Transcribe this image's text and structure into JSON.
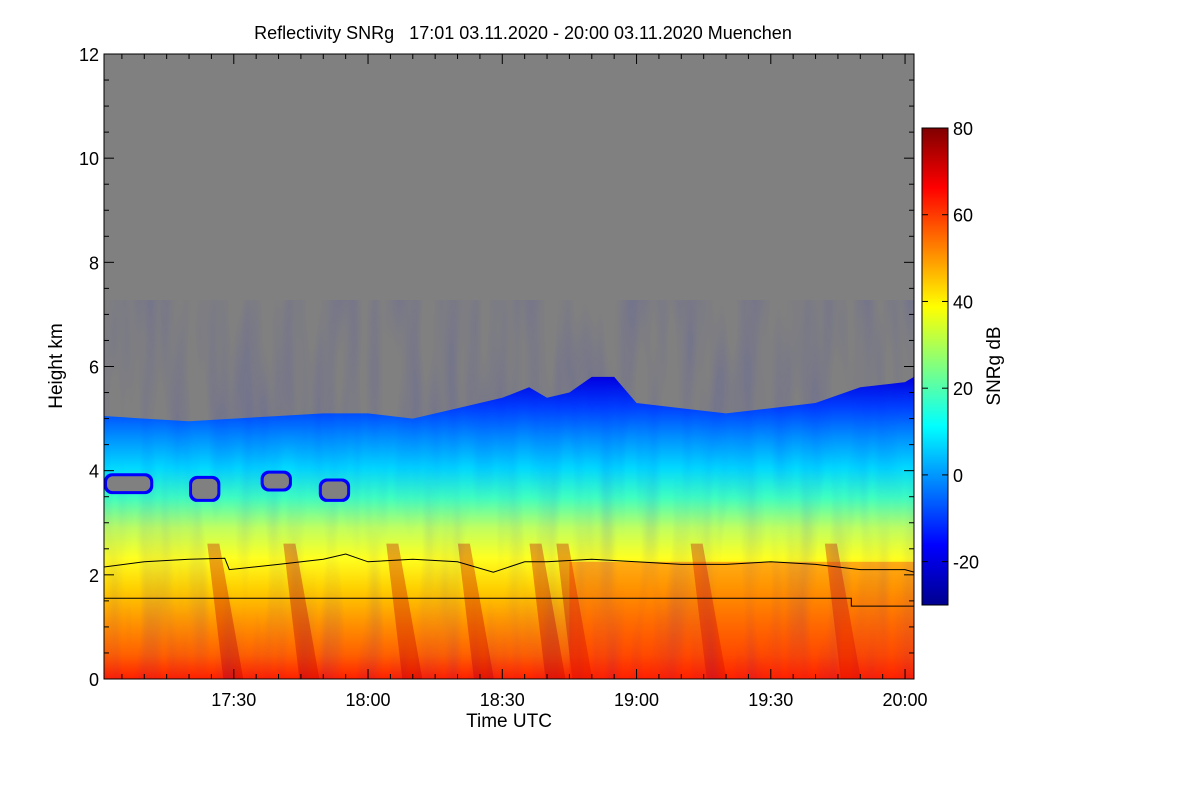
{
  "chart_data": {
    "type": "heatmap",
    "title": "Reflectivity SNRg   17:01 03.11.2020 - 20:00 03.11.2020 Muenchen",
    "xlabel": "Time UTC",
    "ylabel": "Height km",
    "x_range": [
      "17:01",
      "20:02"
    ],
    "x_ticks": [
      "17:30",
      "18:00",
      "18:30",
      "19:00",
      "19:30",
      "20:00"
    ],
    "ylim": [
      0,
      12
    ],
    "y_ticks": [
      "0",
      "2",
      "4",
      "6",
      "8",
      "10",
      "12"
    ],
    "colorbar": {
      "label": "SNRg dB",
      "range": [
        -30,
        80
      ],
      "ticks": [
        "-20",
        "0",
        "20",
        "40",
        "60",
        "80"
      ],
      "colors": [
        "#00008f",
        "#0000ff",
        "#0080ff",
        "#00ffff",
        "#80ff80",
        "#ffff00",
        "#ff8000",
        "#ff0000",
        "#800000"
      ]
    },
    "background_color": "#808080",
    "echo_top_km": [
      {
        "t": "17:01",
        "h": 5.05
      },
      {
        "t": "17:10",
        "h": 5.0
      },
      {
        "t": "17:20",
        "h": 4.95
      },
      {
        "t": "17:30",
        "h": 5.0
      },
      {
        "t": "17:40",
        "h": 5.05
      },
      {
        "t": "17:50",
        "h": 5.1
      },
      {
        "t": "18:00",
        "h": 5.1
      },
      {
        "t": "18:10",
        "h": 5.0
      },
      {
        "t": "18:20",
        "h": 5.2
      },
      {
        "t": "18:30",
        "h": 5.4
      },
      {
        "t": "18:36",
        "h": 5.6
      },
      {
        "t": "18:40",
        "h": 5.4
      },
      {
        "t": "18:45",
        "h": 5.5
      },
      {
        "t": "18:50",
        "h": 5.8
      },
      {
        "t": "18:55",
        "h": 5.8
      },
      {
        "t": "19:00",
        "h": 5.3
      },
      {
        "t": "19:10",
        "h": 5.2
      },
      {
        "t": "19:20",
        "h": 5.1
      },
      {
        "t": "19:30",
        "h": 5.2
      },
      {
        "t": "19:40",
        "h": 5.3
      },
      {
        "t": "19:50",
        "h": 5.6
      },
      {
        "t": "20:00",
        "h": 5.7
      },
      {
        "t": "20:02",
        "h": 5.8
      }
    ],
    "gap_regions": [
      {
        "t_start": "17:01",
        "t_end": "17:12",
        "h_low": 3.55,
        "h_high": 3.95
      },
      {
        "t_start": "17:20",
        "t_end": "17:27",
        "h_low": 3.4,
        "h_high": 3.9
      },
      {
        "t_start": "17:36",
        "t_end": "17:43",
        "h_low": 3.6,
        "h_high": 4.0
      },
      {
        "t_start": "17:49",
        "t_end": "17:56",
        "h_low": 3.4,
        "h_high": 3.85
      }
    ],
    "line_series": [
      {
        "points": [
          {
            "t": "17:01",
            "h": 2.15
          },
          {
            "t": "17:10",
            "h": 2.25
          },
          {
            "t": "17:20",
            "h": 2.3
          },
          {
            "t": "17:28",
            "h": 2.32
          },
          {
            "t": "17:29",
            "h": 2.1
          },
          {
            "t": "17:40",
            "h": 2.2
          },
          {
            "t": "17:50",
            "h": 2.3
          },
          {
            "t": "17:55",
            "h": 2.4
          },
          {
            "t": "18:00",
            "h": 2.25
          },
          {
            "t": "18:10",
            "h": 2.3
          },
          {
            "t": "18:20",
            "h": 2.25
          },
          {
            "t": "18:28",
            "h": 2.05
          },
          {
            "t": "18:35",
            "h": 2.25
          },
          {
            "t": "18:40",
            "h": 2.25
          },
          {
            "t": "18:50",
            "h": 2.3
          },
          {
            "t": "19:00",
            "h": 2.25
          },
          {
            "t": "19:10",
            "h": 2.2
          },
          {
            "t": "19:20",
            "h": 2.2
          },
          {
            "t": "19:30",
            "h": 2.25
          },
          {
            "t": "19:40",
            "h": 2.2
          },
          {
            "t": "19:50",
            "h": 2.1
          },
          {
            "t": "20:00",
            "h": 2.1
          },
          {
            "t": "20:02",
            "h": 2.05
          }
        ]
      },
      {
        "points": [
          {
            "t": "17:01",
            "h": 1.55
          },
          {
            "t": "19:48",
            "h": 1.55
          },
          {
            "t": "19:48",
            "h": 1.4
          },
          {
            "t": "20:02",
            "h": 1.4
          }
        ]
      }
    ]
  }
}
